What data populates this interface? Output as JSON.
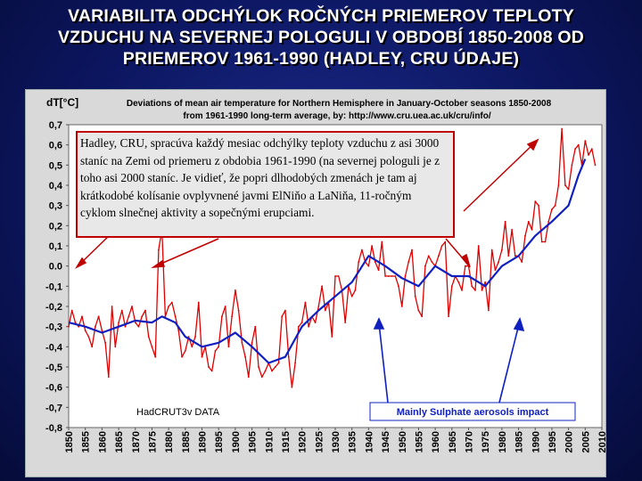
{
  "slide": {
    "title_lines": [
      "VARIABILITA ODCHÝLOK ROČNÝCH PRIEMEROV TEPLOTY",
      "VZDUCHU NA SEVERNEJ POLOGULI V OBDOBÍ 1850-2008 OD",
      "PRIEMEROV 1961-1990 (HADLEY, CRU ÚDAJE)"
    ]
  },
  "callout": {
    "text": "Hadley, CRU, spracúva každý mesiac odchýlky teploty vzduchu z asi 3000 staníc na Zemi od priemeru z obdobia 1961-1990 (na severnej pologuli je z toho asi 2000 staníc. Je vidieť, že popri dlhodobých zmenách je tam aj krátkodobé kolísanie ovplyvnené javmi ElNiňo a LaNiňa, 11-ročným cyklom slnečnej aktivity a sopečnými erupciami."
  },
  "chart_data": {
    "type": "line",
    "title": "Deviations of mean air temperature for Northern Hemisphere in January-October seasons 1850-2008",
    "subtitle": "from 1961-1990 long-term average, by: http://www.cru.uea.ac.uk/cru/info/",
    "ylabel": "dT[°C]",
    "xlabel": "",
    "xlim": [
      1850,
      2010
    ],
    "ylim": [
      -0.8,
      0.7
    ],
    "yticks": [
      0.7,
      0.6,
      0.5,
      0.4,
      0.3,
      0.2,
      0.1,
      0.0,
      -0.1,
      -0.2,
      -0.3,
      -0.4,
      -0.5,
      -0.6,
      -0.7,
      -0.8
    ],
    "ytick_labels": [
      "0,7",
      "0,6",
      "0,5",
      "0,4",
      "0,3",
      "0,2",
      "0,1",
      "0.0",
      "-0,1",
      "-0,2",
      "-0,3",
      "-0,4",
      "-0,5",
      "-0,6",
      "-0,7",
      "-0,8"
    ],
    "xticks": [
      1850,
      1855,
      1860,
      1865,
      1870,
      1875,
      1880,
      1885,
      1890,
      1895,
      1900,
      1905,
      1910,
      1915,
      1920,
      1925,
      1930,
      1935,
      1940,
      1945,
      1950,
      1955,
      1960,
      1965,
      1970,
      1975,
      1980,
      1985,
      1990,
      1995,
      2000,
      2005,
      2010
    ],
    "grid": false,
    "source_label": "HadCRUT3v DATA",
    "annotation_label": "Mainly Sulphate aerosols impact",
    "series": [
      {
        "kind": "annual",
        "color": "#e00000",
        "x": [
          1850,
          1851,
          1852,
          1853,
          1854,
          1855,
          1856,
          1857,
          1858,
          1859,
          1860,
          1861,
          1862,
          1863,
          1864,
          1865,
          1866,
          1867,
          1868,
          1869,
          1870,
          1871,
          1872,
          1873,
          1874,
          1875,
          1876,
          1877,
          1878,
          1879,
          1880,
          1881,
          1882,
          1883,
          1884,
          1885,
          1886,
          1887,
          1888,
          1889,
          1890,
          1891,
          1892,
          1893,
          1894,
          1895,
          1896,
          1897,
          1898,
          1899,
          1900,
          1901,
          1902,
          1903,
          1904,
          1905,
          1906,
          1907,
          1908,
          1909,
          1910,
          1911,
          1912,
          1913,
          1914,
          1915,
          1916,
          1917,
          1918,
          1919,
          1920,
          1921,
          1922,
          1923,
          1924,
          1925,
          1926,
          1927,
          1928,
          1929,
          1930,
          1931,
          1932,
          1933,
          1934,
          1935,
          1936,
          1937,
          1938,
          1939,
          1940,
          1941,
          1942,
          1943,
          1944,
          1945,
          1946,
          1947,
          1948,
          1949,
          1950,
          1951,
          1952,
          1953,
          1954,
          1955,
          1956,
          1957,
          1958,
          1959,
          1960,
          1961,
          1962,
          1963,
          1964,
          1965,
          1966,
          1967,
          1968,
          1969,
          1970,
          1971,
          1972,
          1973,
          1974,
          1975,
          1976,
          1977,
          1978,
          1979,
          1980,
          1981,
          1982,
          1983,
          1984,
          1985,
          1986,
          1987,
          1988,
          1989,
          1990,
          1991,
          1992,
          1993,
          1994,
          1995,
          1996,
          1997,
          1998,
          1999,
          2000,
          2001,
          2002,
          2003,
          2004,
          2005,
          2006,
          2007,
          2008
        ],
        "y": [
          -0.3,
          -0.22,
          -0.28,
          -0.3,
          -0.25,
          -0.32,
          -0.35,
          -0.4,
          -0.3,
          -0.25,
          -0.32,
          -0.38,
          -0.55,
          -0.2,
          -0.4,
          -0.28,
          -0.22,
          -0.3,
          -0.25,
          -0.2,
          -0.28,
          -0.3,
          -0.25,
          -0.22,
          -0.35,
          -0.4,
          -0.45,
          0.08,
          0.18,
          -0.25,
          -0.2,
          -0.18,
          -0.25,
          -0.32,
          -0.45,
          -0.42,
          -0.35,
          -0.4,
          -0.35,
          -0.18,
          -0.45,
          -0.4,
          -0.5,
          -0.52,
          -0.42,
          -0.4,
          -0.25,
          -0.2,
          -0.4,
          -0.25,
          -0.12,
          -0.22,
          -0.38,
          -0.45,
          -0.55,
          -0.38,
          -0.3,
          -0.5,
          -0.55,
          -0.52,
          -0.48,
          -0.52,
          -0.5,
          -0.48,
          -0.25,
          -0.22,
          -0.45,
          -0.6,
          -0.48,
          -0.3,
          -0.28,
          -0.18,
          -0.3,
          -0.25,
          -0.28,
          -0.2,
          -0.1,
          -0.22,
          -0.18,
          -0.35,
          -0.05,
          -0.05,
          -0.12,
          -0.28,
          -0.1,
          -0.15,
          -0.12,
          0.02,
          0.08,
          0.02,
          0.0,
          0.1,
          0.02,
          -0.02,
          0.12,
          -0.05,
          -0.05,
          -0.05,
          -0.05,
          -0.1,
          -0.2,
          -0.05,
          0.02,
          0.08,
          -0.15,
          -0.22,
          -0.25,
          0.0,
          0.05,
          0.02,
          0.0,
          0.05,
          0.1,
          0.12,
          -0.25,
          -0.1,
          -0.05,
          -0.08,
          -0.12,
          0.0,
          0.0,
          -0.1,
          -0.12,
          0.1,
          -0.12,
          -0.08,
          -0.22,
          0.08,
          -0.02,
          0.02,
          0.08,
          0.22,
          0.05,
          0.18,
          0.05,
          0.05,
          0.02,
          0.15,
          0.22,
          0.18,
          0.32,
          0.3,
          0.12,
          0.12,
          0.22,
          0.28,
          0.3,
          0.4,
          0.68,
          0.4,
          0.38,
          0.5,
          0.58,
          0.6,
          0.5,
          0.62,
          0.55,
          0.58,
          0.5
        ]
      },
      {
        "kind": "smoothed",
        "color": "#1020c0",
        "x": [
          1850,
          1855,
          1860,
          1865,
          1870,
          1875,
          1878,
          1882,
          1885,
          1890,
          1895,
          1900,
          1905,
          1910,
          1915,
          1920,
          1925,
          1930,
          1935,
          1940,
          1945,
          1950,
          1955,
          1960,
          1965,
          1970,
          1975,
          1980,
          1985,
          1990,
          1995,
          2000,
          2003,
          2005
        ],
        "y": [
          -0.28,
          -0.3,
          -0.33,
          -0.3,
          -0.27,
          -0.28,
          -0.25,
          -0.28,
          -0.35,
          -0.4,
          -0.38,
          -0.33,
          -0.4,
          -0.48,
          -0.45,
          -0.3,
          -0.22,
          -0.15,
          -0.08,
          0.05,
          0.0,
          -0.06,
          -0.1,
          0.0,
          -0.05,
          -0.05,
          -0.1,
          0.0,
          0.05,
          0.15,
          0.22,
          0.3,
          0.45,
          0.53
        ]
      }
    ]
  }
}
